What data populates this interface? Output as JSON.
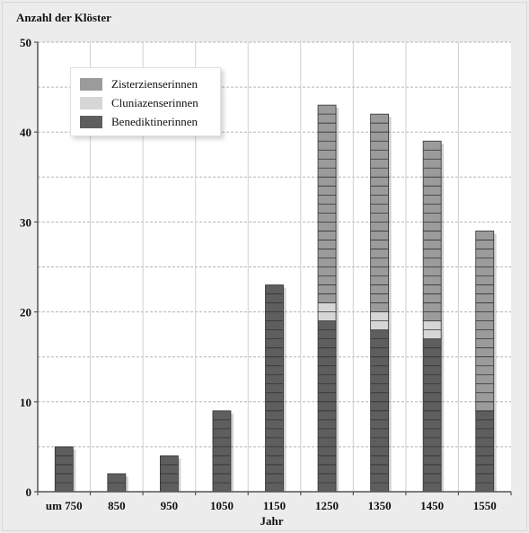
{
  "chart_data": {
    "type": "bar",
    "stacked": true,
    "ylabel": "Anzahl der Klöster",
    "xlabel": "Jahr",
    "ylim": [
      0,
      50
    ],
    "yticks": [
      0,
      10,
      20,
      30,
      40,
      50
    ],
    "categories": [
      "um 750",
      "850",
      "950",
      "1050",
      "1150",
      "1250",
      "1350",
      "1450",
      "1550"
    ],
    "series": [
      {
        "name": "Benediktinerinnen",
        "color": "#5e5e5e",
        "values": [
          5,
          2,
          4,
          9,
          23,
          19,
          18,
          17,
          9
        ]
      },
      {
        "name": "Cluniazenserinnen",
        "color": "#d6d6d6",
        "values": [
          0,
          0,
          0,
          0,
          0,
          2,
          2,
          2,
          0
        ]
      },
      {
        "name": "Zisterzienserinnen",
        "color": "#9b9b9b",
        "values": [
          0,
          0,
          0,
          0,
          0,
          22,
          22,
          20,
          20
        ]
      }
    ],
    "legend_order": [
      "Zisterzienserinnen",
      "Cluniazenserinnen",
      "Benediktinerinnen"
    ],
    "legend_position": "top-left",
    "grid": true
  }
}
